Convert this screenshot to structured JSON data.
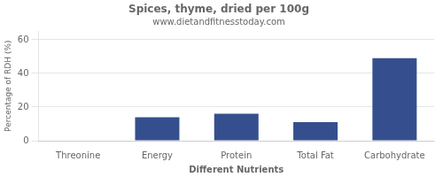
{
  "chart_data": {
    "type": "bar",
    "title": "Spices, thyme, dried per 100g",
    "subtitle": "www.dietandfitnesstoday.com",
    "xlabel": "Different Nutrients",
    "ylabel": "Percentage of RDH (%)",
    "categories": [
      "Threonine",
      "Energy",
      "Protein",
      "Total Fat",
      "Carbohydrate"
    ],
    "values": [
      0,
      14,
      16,
      11,
      49
    ],
    "color": "#354f8e",
    "ylim": [
      0,
      65
    ],
    "yticks": [
      0,
      20,
      40,
      60
    ],
    "grid": true
  }
}
